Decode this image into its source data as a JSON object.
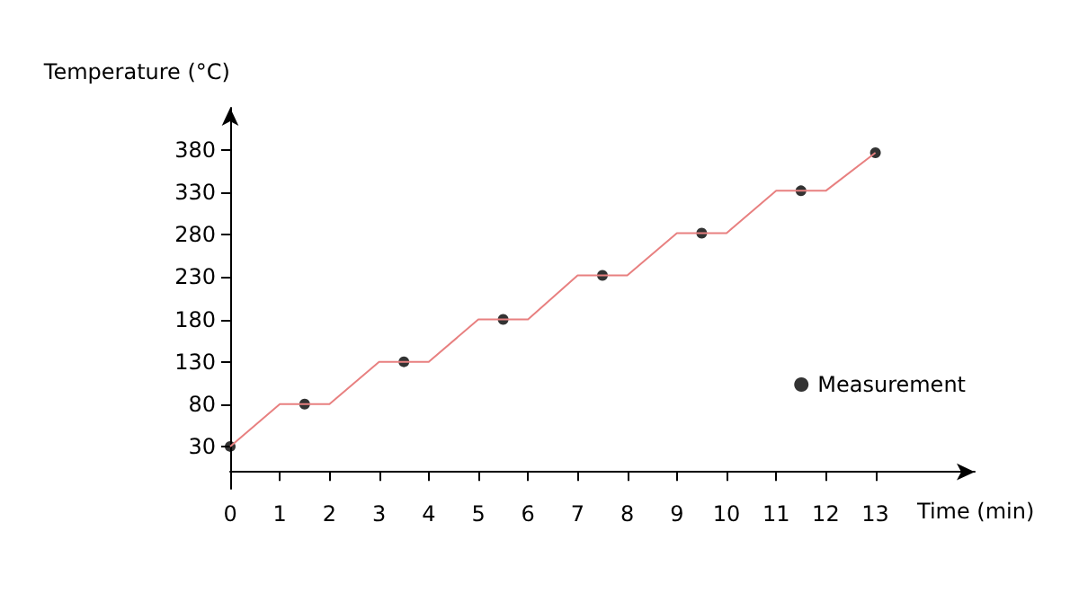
{
  "chart_data": {
    "type": "line",
    "xlabel": "Time (min)",
    "ylabel": "Temperature (°C)",
    "xlim": [
      0,
      15
    ],
    "xticks": [
      0,
      1,
      2,
      3,
      4,
      5,
      6,
      7,
      8,
      9,
      10,
      11,
      12,
      13
    ],
    "ylim": [
      -20,
      430
    ],
    "yticks": [
      30,
      80,
      130,
      180,
      230,
      280,
      330,
      380
    ],
    "grid": false,
    "legend": "right",
    "series": [
      {
        "color": "#e88080",
        "x": [
          0,
          1,
          2,
          3,
          4,
          5,
          6,
          7,
          8,
          9,
          10,
          11,
          12,
          13
        ],
        "values": [
          30,
          80,
          80,
          130,
          130,
          180,
          180,
          232,
          232,
          282,
          282,
          332,
          332,
          377
        ]
      },
      {
        "type": "scatter",
        "name": "Measurement",
        "color": "#000000",
        "x": [
          0,
          1.5,
          3.5,
          5.5,
          7.5,
          9.5,
          11.5,
          13
        ],
        "values": [
          30,
          80,
          130,
          180,
          232,
          282,
          332,
          377
        ]
      }
    ]
  }
}
